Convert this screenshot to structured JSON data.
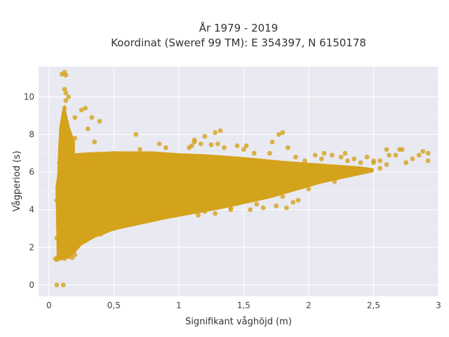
{
  "chart_data": {
    "type": "scatter",
    "title_lines": [
      "År 1979 - 2019",
      "Koordinat (Sweref 99 TM): E 354397, N 6150178"
    ],
    "xlabel": "Signifikant våghöjd (m)",
    "ylabel": "Vågperiod (s)",
    "xlim": [
      -0.08,
      3.0
    ],
    "ylim": [
      -0.6,
      11.6
    ],
    "x_ticks": [
      0,
      0.5,
      1,
      1.5,
      2,
      2.5,
      3
    ],
    "x_tick_labels": [
      "0",
      "0,5",
      "1",
      "1,5",
      "2",
      "2,5",
      "3"
    ],
    "y_ticks": [
      0,
      2,
      4,
      6,
      8,
      10
    ],
    "y_tick_labels": [
      "0",
      "2",
      "4",
      "6",
      "8",
      "10"
    ],
    "grid": true,
    "marker_color": "#d4a31c",
    "background_color": "#e9e9f1",
    "series": [
      {
        "values_note": "dense cloud",
        "points": [
          [
            0.05,
            1.4
          ],
          [
            0.06,
            1.35
          ],
          [
            0.07,
            1.5
          ],
          [
            0.08,
            1.4
          ],
          [
            0.1,
            1.45
          ],
          [
            0.12,
            1.4
          ],
          [
            0.15,
            1.5
          ],
          [
            0.18,
            1.45
          ],
          [
            0.2,
            1.6
          ],
          [
            0.06,
            2.5
          ],
          [
            0.07,
            3.2
          ],
          [
            0.06,
            4.5
          ],
          [
            0.07,
            5.1
          ],
          [
            0.08,
            5.8
          ],
          [
            0.08,
            6.5
          ],
          [
            0.09,
            7.0
          ],
          [
            0.1,
            7.5
          ],
          [
            0.1,
            8.2
          ],
          [
            0.11,
            8.8
          ],
          [
            0.12,
            9.4
          ],
          [
            0.13,
            9.8
          ],
          [
            0.13,
            10.2
          ],
          [
            0.15,
            10.0
          ],
          [
            0.12,
            10.4
          ],
          [
            0.1,
            11.2
          ],
          [
            0.12,
            11.3
          ],
          [
            0.13,
            11.15
          ],
          [
            0.2,
            8.9
          ],
          [
            0.25,
            9.3
          ],
          [
            0.28,
            9.4
          ],
          [
            0.33,
            8.9
          ],
          [
            0.39,
            8.7
          ],
          [
            0.2,
            7.8
          ],
          [
            0.3,
            8.3
          ],
          [
            0.35,
            7.6
          ],
          [
            0.06,
            0.0
          ],
          [
            0.11,
            0.0
          ],
          [
            0.2,
            2.2
          ],
          [
            0.3,
            2.5
          ],
          [
            0.4,
            2.7
          ],
          [
            0.5,
            3.0
          ],
          [
            0.6,
            3.2
          ],
          [
            0.7,
            3.4
          ],
          [
            0.8,
            3.6
          ],
          [
            0.9,
            3.7
          ],
          [
            1.0,
            3.8
          ],
          [
            1.2,
            3.9
          ],
          [
            1.4,
            4.1
          ],
          [
            1.6,
            4.3
          ],
          [
            1.8,
            4.7
          ],
          [
            2.0,
            5.1
          ],
          [
            2.2,
            5.5
          ],
          [
            0.3,
            6.6
          ],
          [
            0.5,
            7.0
          ],
          [
            0.7,
            7.2
          ],
          [
            0.9,
            7.3
          ],
          [
            1.1,
            7.4
          ],
          [
            1.3,
            7.5
          ],
          [
            1.5,
            7.2
          ],
          [
            1.7,
            7.0
          ],
          [
            1.9,
            6.8
          ],
          [
            2.1,
            6.7
          ],
          [
            2.3,
            6.6
          ],
          [
            2.5,
            6.5
          ],
          [
            2.6,
            6.4
          ],
          [
            0.67,
            8.0
          ],
          [
            0.85,
            7.5
          ],
          [
            1.08,
            7.3
          ],
          [
            1.12,
            7.6
          ],
          [
            1.17,
            7.5
          ],
          [
            1.12,
            7.7
          ],
          [
            1.2,
            7.9
          ],
          [
            1.25,
            7.45
          ],
          [
            1.28,
            8.1
          ],
          [
            1.32,
            8.2
          ],
          [
            1.35,
            7.3
          ],
          [
            1.45,
            7.4
          ],
          [
            1.52,
            7.4
          ],
          [
            1.58,
            7.0
          ],
          [
            1.72,
            7.6
          ],
          [
            1.77,
            8.0
          ],
          [
            1.8,
            8.1
          ],
          [
            1.84,
            7.3
          ],
          [
            1.97,
            6.6
          ],
          [
            2.05,
            6.9
          ],
          [
            2.12,
            7.0
          ],
          [
            2.18,
            6.9
          ],
          [
            2.25,
            6.8
          ],
          [
            2.28,
            7.0
          ],
          [
            2.35,
            6.7
          ],
          [
            2.4,
            6.5
          ],
          [
            2.45,
            6.8
          ],
          [
            2.5,
            6.6
          ],
          [
            2.55,
            6.6
          ],
          [
            2.6,
            7.2
          ],
          [
            2.62,
            6.9
          ],
          [
            2.67,
            6.9
          ],
          [
            2.7,
            7.2
          ],
          [
            2.72,
            7.2
          ],
          [
            2.75,
            6.5
          ],
          [
            2.8,
            6.7
          ],
          [
            2.85,
            6.9
          ],
          [
            2.88,
            7.1
          ],
          [
            2.92,
            7.0
          ],
          [
            2.92,
            6.6
          ],
          [
            2.55,
            6.2
          ],
          [
            2.45,
            6.1
          ],
          [
            2.38,
            6.1
          ],
          [
            2.26,
            6.0
          ],
          [
            2.1,
            6.3
          ],
          [
            1.92,
            4.5
          ],
          [
            1.88,
            4.4
          ],
          [
            1.83,
            4.1
          ],
          [
            1.75,
            4.2
          ],
          [
            1.65,
            4.1
          ],
          [
            1.55,
            4.0
          ],
          [
            1.4,
            4.0
          ],
          [
            1.28,
            3.8
          ],
          [
            1.15,
            3.7
          ]
        ]
      }
    ]
  }
}
